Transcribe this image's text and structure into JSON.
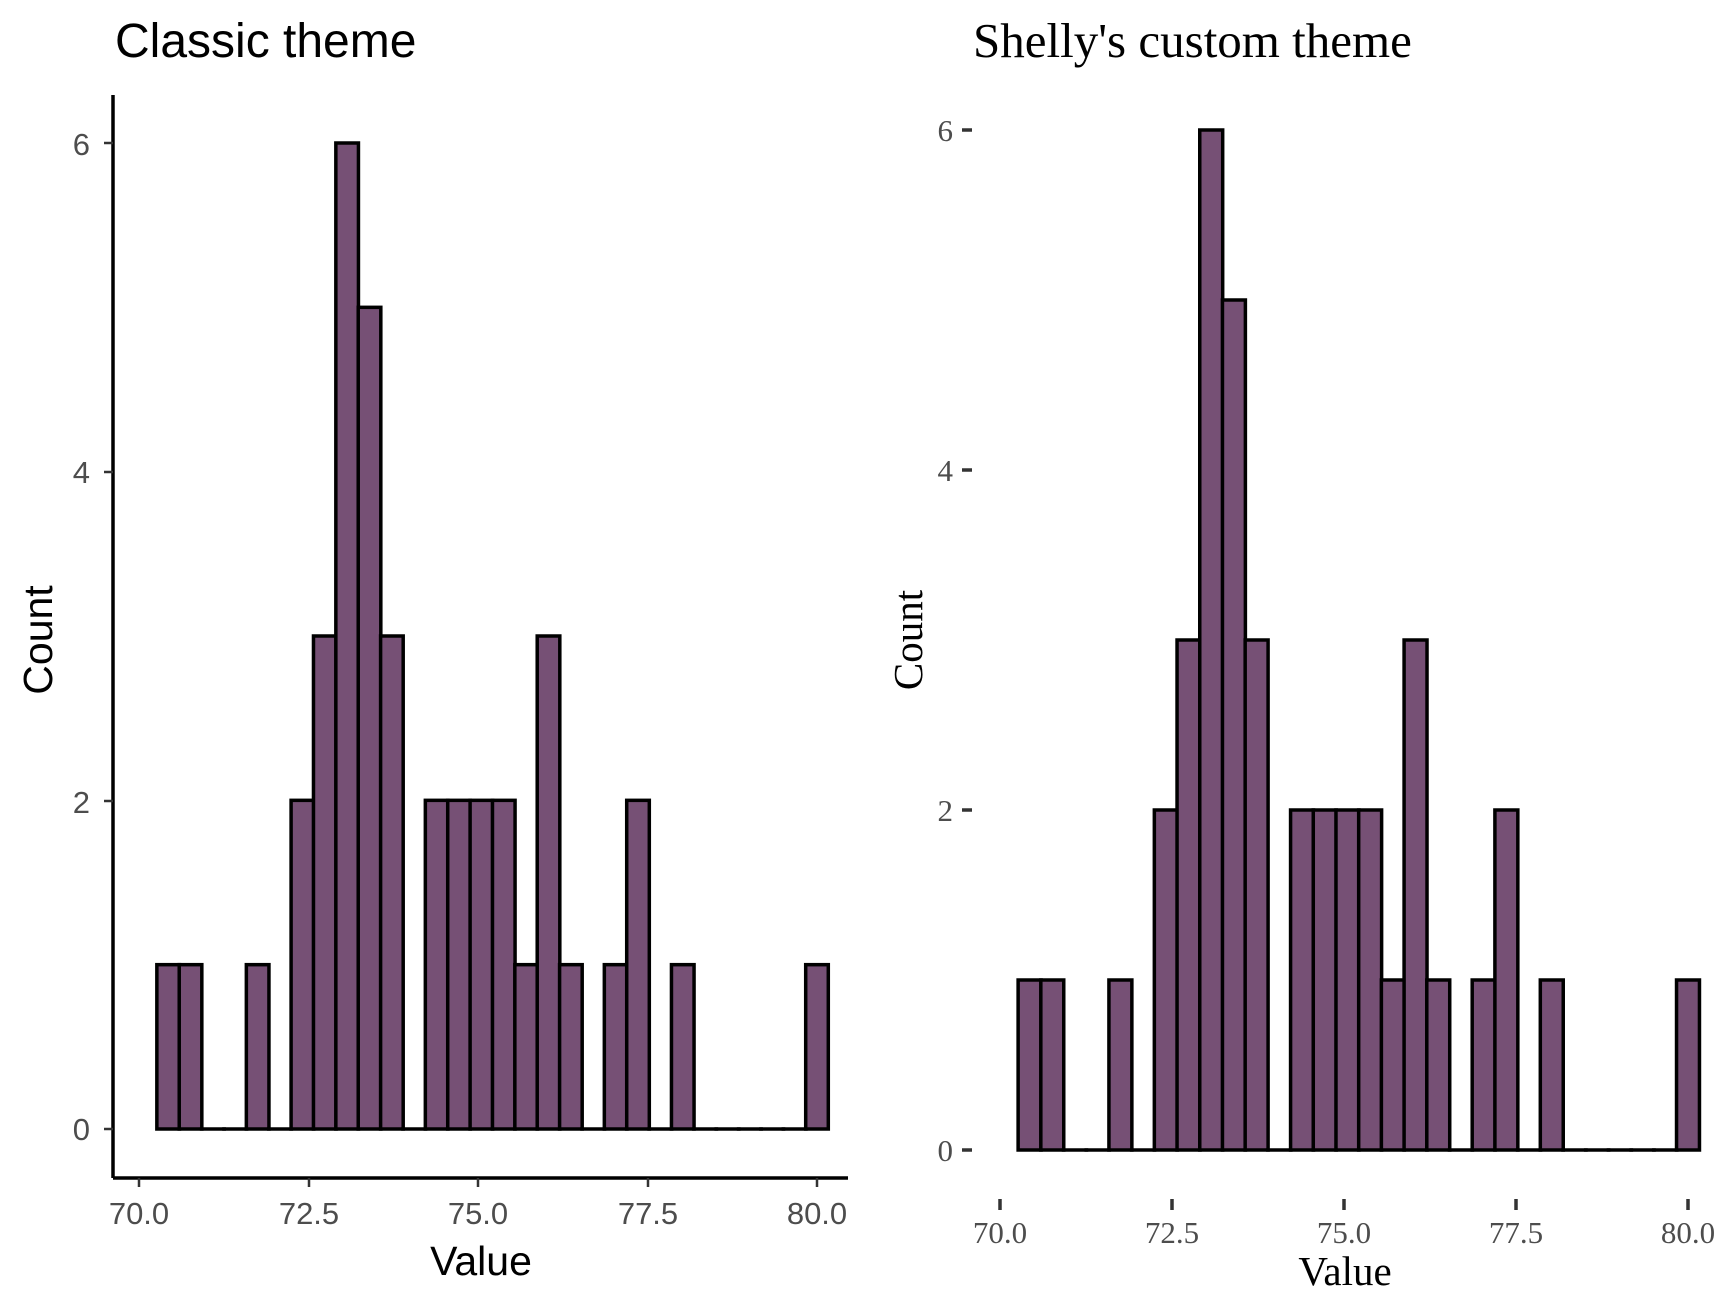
{
  "bar_fill": "#765075",
  "bar_stroke": "#000000",
  "axis_text_color": "#4d4d4d",
  "chart_data": [
    {
      "type": "bar",
      "title": "Classic theme",
      "xlabel": "Value",
      "ylabel": "Count",
      "xlim": [
        70.0,
        80.0
      ],
      "ylim": [
        0,
        6
      ],
      "xticks": [
        "70.0",
        "72.5",
        "75.0",
        "77.5",
        "80.0"
      ],
      "xtick_values": [
        70.0,
        72.5,
        75.0,
        77.5,
        80.0
      ],
      "yticks": [
        "0",
        "2",
        "4",
        "6"
      ],
      "ytick_values": [
        0,
        2,
        4,
        6
      ],
      "bin_width": 0.3333,
      "bin_centers": [
        70.43,
        70.76,
        71.09,
        71.42,
        71.75,
        72.08,
        72.41,
        72.74,
        73.07,
        73.4,
        73.73,
        74.06,
        74.39,
        74.72,
        75.05,
        75.38,
        75.71,
        76.04,
        76.37,
        76.7,
        77.03,
        77.36,
        77.69,
        78.02,
        78.35,
        78.68,
        79.01,
        79.34,
        79.67,
        80.0
      ],
      "values": [
        1,
        1,
        0,
        0,
        1,
        0,
        2,
        3,
        6,
        5,
        3,
        0,
        2,
        2,
        2,
        2,
        1,
        3,
        1,
        0,
        1,
        2,
        0,
        1,
        0,
        0,
        0,
        0,
        0,
        1
      ],
      "grid": false,
      "legend": "none"
    },
    {
      "type": "bar",
      "title": "Shelly's custom theme",
      "xlabel": "Value",
      "ylabel": "Count",
      "xlim": [
        70.0,
        80.0
      ],
      "ylim": [
        0,
        6
      ],
      "xticks": [
        "70.0",
        "72.5",
        "75.0",
        "77.5",
        "80.0"
      ],
      "xtick_values": [
        70.0,
        72.5,
        75.0,
        77.5,
        80.0
      ],
      "yticks": [
        "0",
        "2",
        "4",
        "6"
      ],
      "ytick_values": [
        0,
        2,
        4,
        6
      ],
      "bin_width": 0.3333,
      "bin_centers": [
        70.43,
        70.76,
        71.09,
        71.42,
        71.75,
        72.08,
        72.41,
        72.74,
        73.07,
        73.4,
        73.73,
        74.06,
        74.39,
        74.72,
        75.05,
        75.38,
        75.71,
        76.04,
        76.37,
        76.7,
        77.03,
        77.36,
        77.69,
        78.02,
        78.35,
        78.68,
        79.01,
        79.34,
        79.67,
        80.0
      ],
      "values": [
        1,
        1,
        0,
        0,
        1,
        0,
        2,
        3,
        6,
        5,
        3,
        0,
        2,
        2,
        2,
        2,
        1,
        3,
        1,
        0,
        1,
        2,
        0,
        1,
        0,
        0,
        0,
        0,
        0,
        1
      ],
      "grid": false,
      "legend": "none"
    }
  ]
}
